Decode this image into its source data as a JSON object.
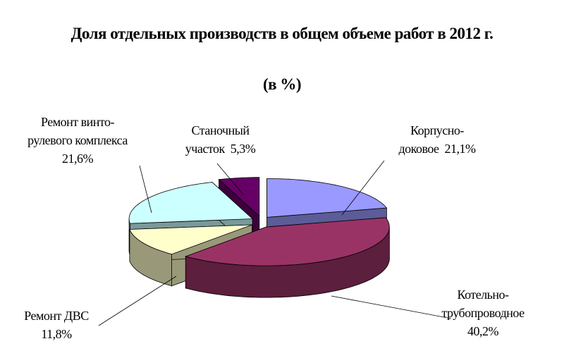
{
  "chart_data": {
    "type": "pie",
    "title": "Доля отдельных производств в общем объеме работ в 2012 г.",
    "subtitle": "(в %)",
    "categories": [
      "Корпусно-доковое",
      "Котельно-трубопроводное",
      "Ремонт ДВС",
      "Ремонт винто-рулевого комплекса",
      "Станочный участок"
    ],
    "values": [
      21.1,
      40.2,
      11.8,
      21.6,
      5.3
    ],
    "value_labels": [
      "21,1%",
      "40,2%",
      "11,8%",
      "21,6%",
      "5,3%"
    ],
    "colors": [
      "#9999ff",
      "#993366",
      "#ffffcc",
      "#ccffff",
      "#660066"
    ]
  }
}
